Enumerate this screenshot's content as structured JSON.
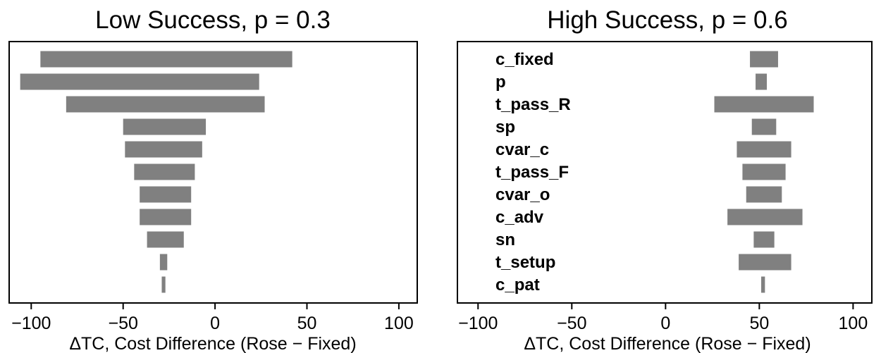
{
  "chart_data": [
    {
      "type": "bar",
      "orientation": "horizontal",
      "title": "Low Success, p = 0.3",
      "xlabel": "ΔTC, Cost Difference (Rose − Fixed)",
      "ylabel": "",
      "xlim": [
        -112,
        110
      ],
      "xticks": [
        -100,
        -50,
        0,
        50,
        100
      ],
      "xtick_labels": [
        "−100",
        "−50",
        "0",
        "50",
        "100"
      ],
      "categories": [],
      "bars": [
        {
          "low": -95,
          "high": 42
        },
        {
          "low": -106,
          "high": 24
        },
        {
          "low": -81,
          "high": 27
        },
        {
          "low": -50,
          "high": -5
        },
        {
          "low": -49,
          "high": -7
        },
        {
          "low": -44,
          "high": -11
        },
        {
          "low": -41,
          "high": -13
        },
        {
          "low": -41,
          "high": -13
        },
        {
          "low": -37,
          "high": -17
        },
        {
          "low": -30,
          "high": -26
        },
        {
          "low": -29,
          "high": -27
        }
      ],
      "grid": false,
      "legend": "none"
    },
    {
      "type": "bar",
      "orientation": "horizontal",
      "title": "High Success, p = 0.6",
      "xlabel": "ΔTC, Cost Difference (Rose − Fixed)",
      "ylabel": "",
      "xlim": [
        -111,
        110
      ],
      "xticks": [
        -100,
        -50,
        0,
        50,
        100
      ],
      "xtick_labels": [
        "−100",
        "−50",
        "0",
        "50",
        "100"
      ],
      "categories": [
        "c_fixed",
        "p",
        "t_pass_R",
        "sp",
        "cvar_c",
        "t_pass_F",
        "cvar_o",
        "c_adv",
        "sn",
        "t_setup",
        "c_pat"
      ],
      "bars": [
        {
          "low": 45,
          "high": 60
        },
        {
          "low": 48,
          "high": 54
        },
        {
          "low": 26,
          "high": 79
        },
        {
          "low": 46,
          "high": 59
        },
        {
          "low": 38,
          "high": 67
        },
        {
          "low": 41,
          "high": 64
        },
        {
          "low": 43,
          "high": 62
        },
        {
          "low": 33,
          "high": 73
        },
        {
          "low": 47,
          "high": 58
        },
        {
          "low": 39,
          "high": 67
        },
        {
          "low": 51,
          "high": 53
        }
      ],
      "grid": false,
      "legend": "none"
    }
  ],
  "colors": {
    "bar": "#808080",
    "frame": "#000000",
    "background": "#ffffff"
  }
}
